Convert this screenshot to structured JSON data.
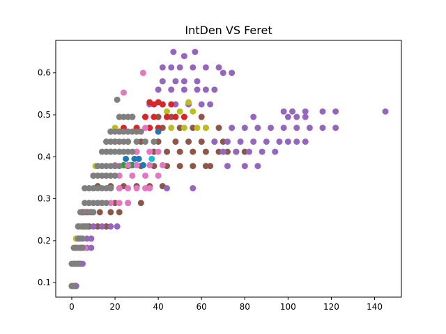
{
  "chart_data": {
    "type": "scatter",
    "title": "IntDen VS Feret",
    "xlabel": "",
    "ylabel": "",
    "xlim": [
      -7.4,
      152.4
    ],
    "ylim": [
      0.0655,
      0.6775
    ],
    "xticks": [
      0,
      20,
      40,
      60,
      80,
      100,
      120,
      140
    ],
    "yticks": [
      0.1,
      0.2,
      0.3,
      0.4,
      0.5,
      0.6
    ],
    "ytick_labels": [
      "0.1",
      "0.2",
      "0.3",
      "0.4",
      "0.5",
      "0.6"
    ],
    "grid": false,
    "legend": "none",
    "band_step_estimate": 0.01,
    "series": [
      {
        "color": "#8c564b",
        "bands": [
          {
            "y": 0.092,
            "x": [
              0,
              1,
              2
            ]
          },
          {
            "y": 0.145,
            "x": [
              1,
              2,
              3,
              4
            ]
          },
          {
            "y": 0.183,
            "x": [
              2,
              3,
              4,
              5
            ]
          },
          {
            "y": 0.234,
            "x": [
              3,
              5,
              8,
              12,
              16
            ]
          },
          {
            "y": 0.268,
            "x": [
              5,
              9,
              13,
              18,
              22
            ]
          },
          {
            "y": 0.29,
            "x": [
              8,
              14,
              20,
              26,
              32
            ]
          },
          {
            "y": 0.33,
            "x": [
              12,
              18,
              24,
              30,
              36,
              42
            ]
          },
          {
            "y": 0.378,
            "x": [
              20,
              26,
              32,
              38,
              44,
              50,
              56,
              62,
              64
            ]
          },
          {
            "y": 0.412,
            "x": [
              22,
              30,
              38,
              44,
              50,
              56,
              62,
              68,
              72,
              76,
              80
            ]
          },
          {
            "y": 0.436,
            "x": [
              26,
              32,
              40,
              48,
              54,
              60,
              66,
              70
            ]
          },
          {
            "y": 0.469,
            "x": [
              30,
              36,
              42,
              50,
              56,
              62,
              68
            ]
          },
          {
            "y": 0.495,
            "x": [
              34,
              40,
              46,
              52,
              60
            ]
          }
        ]
      },
      {
        "color": "#9467bd",
        "bands": [
          {
            "y": 0.092,
            "x": [
              1,
              2
            ]
          },
          {
            "y": 0.145,
            "x": [
              3,
              4,
              5
            ]
          },
          {
            "y": 0.183,
            "x": [
              5,
              7,
              9
            ]
          },
          {
            "y": 0.205,
            "x": [
              7,
              9
            ]
          },
          {
            "y": 0.234,
            "x": [
              10,
              14,
              18,
              21
            ]
          },
          {
            "y": 0.325,
            "x": [
              44,
              56
            ]
          },
          {
            "y": 0.378,
            "x": [
              72,
              80,
              86
            ]
          },
          {
            "y": 0.412,
            "x": [
              70,
              76,
              82,
              88,
              94
            ]
          },
          {
            "y": 0.436,
            "x": [
              66,
              72,
              78,
              84,
              90,
              96,
              100,
              104,
              108
            ]
          },
          {
            "y": 0.469,
            "x": [
              74,
              80,
              86,
              92,
              98,
              104,
              110,
              116,
              122
            ]
          },
          {
            "y": 0.508,
            "x": [
              98,
              102,
              108,
              116,
              122,
              145
            ]
          },
          {
            "y": 0.495,
            "x": [
              84,
              100,
              104,
              108
            ]
          },
          {
            "y": 0.525,
            "x": [
              36,
              42,
              48,
              54,
              60,
              64
            ]
          },
          {
            "y": 0.56,
            "x": [
              40,
              46,
              52,
              58,
              62,
              66
            ]
          },
          {
            "y": 0.58,
            "x": [
              42,
              48,
              52,
              58
            ]
          },
          {
            "y": 0.613,
            "x": [
              42,
              46,
              50,
              56,
              62,
              68
            ]
          },
          {
            "y": 0.6,
            "x": [
              70,
              74
            ]
          },
          {
            "y": 0.64,
            "x": [
              52
            ]
          },
          {
            "y": 0.65,
            "x": [
              47,
              57
            ]
          }
        ]
      },
      {
        "color": "#bcbd22",
        "bands": [
          {
            "y": 0.183,
            "x": [
              1,
              2
            ]
          },
          {
            "y": 0.205,
            "x": [
              2,
              3
            ]
          },
          {
            "y": 0.234,
            "x": [
              4,
              6
            ]
          },
          {
            "y": 0.325,
            "x": [
              8,
              10
            ]
          },
          {
            "y": 0.378,
            "x": [
              11,
              14
            ]
          },
          {
            "y": 0.469,
            "x": [
              20,
              46,
              52,
              58,
              62
            ]
          },
          {
            "y": 0.508,
            "x": [
              44,
              50,
              56
            ]
          },
          {
            "y": 0.53,
            "x": [
              54
            ]
          }
        ]
      },
      {
        "color": "#d62728",
        "bands": [
          {
            "y": 0.092,
            "x": [
              1
            ]
          },
          {
            "y": 0.268,
            "x": [
              5,
              7
            ]
          },
          {
            "y": 0.355,
            "x": [
              10
            ]
          },
          {
            "y": 0.412,
            "x": [
              16,
              18
            ]
          },
          {
            "y": 0.436,
            "x": [
              16,
              20
            ]
          },
          {
            "y": 0.46,
            "x": [
              18,
              22,
              26,
              30
            ]
          },
          {
            "y": 0.469,
            "x": [
              24,
              30,
              36,
              40
            ]
          },
          {
            "y": 0.495,
            "x": [
              28,
              34,
              38,
              44
            ]
          },
          {
            "y": 0.525,
            "x": [
              38,
              42,
              46
            ]
          },
          {
            "y": 0.53,
            "x": [
              36,
              40
            ]
          },
          {
            "y": 0.495,
            "x": [
              44,
              48,
              52
            ]
          }
        ]
      },
      {
        "color": "#1f77b4",
        "bands": [
          {
            "y": 0.38,
            "x": [
              24,
              28,
              30,
              33
            ]
          },
          {
            "y": 0.395,
            "x": [
              25,
              29,
              31
            ]
          },
          {
            "y": 0.46,
            "x": [
              40
            ]
          }
        ]
      },
      {
        "color": "#2ca02c",
        "bands": [
          {
            "y": 0.325,
            "x": [
              18,
              22
            ]
          },
          {
            "y": 0.38,
            "x": [
              24,
              27
            ]
          }
        ]
      },
      {
        "color": "#17becf",
        "bands": [
          {
            "y": 0.395,
            "x": [
              37
            ]
          }
        ]
      },
      {
        "color": "#e377c2",
        "bands": [
          {
            "y": 0.092,
            "x": [
              0
            ]
          },
          {
            "y": 0.183,
            "x": [
              3,
              6
            ]
          },
          {
            "y": 0.234,
            "x": [
              6
            ]
          },
          {
            "y": 0.29,
            "x": [
              12,
              18,
              22,
              26
            ]
          },
          {
            "y": 0.325,
            "x": [
              18,
              22,
              26,
              30,
              34,
              36
            ]
          },
          {
            "y": 0.355,
            "x": [
              16,
              22,
              28,
              34,
              40
            ]
          },
          {
            "y": 0.38,
            "x": [
              20,
              26,
              30,
              36,
              42
            ]
          },
          {
            "y": 0.412,
            "x": [
              30,
              36,
              40
            ]
          },
          {
            "y": 0.553,
            "x": [
              24
            ]
          },
          {
            "y": 0.6,
            "x": [
              33
            ]
          },
          {
            "y": 0.469,
            "x": [
              34
            ]
          }
        ]
      },
      {
        "color": "#7f7f7f",
        "bands": [
          {
            "y": 0.092,
            "x": [
              0,
              1
            ]
          },
          {
            "y": 0.145,
            "x": [
              0,
              1,
              2,
              3
            ]
          },
          {
            "y": 0.183,
            "x": [
              1,
              2,
              4,
              5
            ]
          },
          {
            "y": 0.205,
            "x": [
              3,
              4,
              5
            ]
          },
          {
            "y": 0.234,
            "x": [
              3,
              5,
              6,
              7
            ]
          },
          {
            "y": 0.268,
            "x": [
              4,
              6,
              8,
              10
            ]
          },
          {
            "y": 0.29,
            "x": [
              6,
              8,
              10,
              12,
              14,
              16
            ]
          },
          {
            "y": 0.325,
            "x": [
              6,
              8,
              10,
              12,
              14,
              16,
              18
            ]
          },
          {
            "y": 0.355,
            "x": [
              10,
              12,
              14,
              16,
              18,
              20
            ]
          },
          {
            "y": 0.378,
            "x": [
              12,
              14,
              16,
              18,
              20,
              22
            ]
          },
          {
            "y": 0.412,
            "x": [
              14,
              16,
              18,
              20,
              22,
              24,
              26,
              28
            ]
          },
          {
            "y": 0.436,
            "x": [
              16,
              18,
              20,
              22,
              24,
              26,
              30,
              34,
              38
            ]
          },
          {
            "y": 0.46,
            "x": [
              18,
              20,
              22,
              24,
              26,
              28,
              30,
              32
            ]
          },
          {
            "y": 0.495,
            "x": [
              22,
              24,
              26,
              28
            ]
          },
          {
            "y": 0.536,
            "x": [
              21
            ]
          }
        ]
      }
    ]
  }
}
